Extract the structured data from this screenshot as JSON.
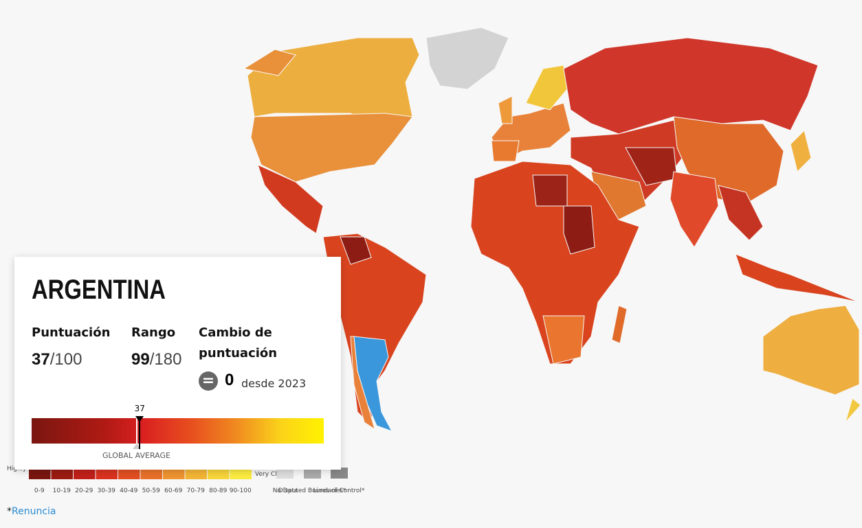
{
  "card": {
    "country": "ARGENTINA",
    "score_label": "Puntuación",
    "score": 37,
    "score_max": "/100",
    "rank_label": "Rango",
    "rank": 99,
    "rank_max": "/180",
    "change_label": "Cambio de puntuación",
    "change": 0,
    "change_since": "desde 2023",
    "average_label": "GLOBAL AVERAGE"
  },
  "legend": {
    "low_label": "Highly Corrupt",
    "high_label": "Very Clean",
    "ranges": [
      "0-9",
      "10-19",
      "20-29",
      "30-39",
      "40-49",
      "50-59",
      "60-69",
      "70-79",
      "80-89",
      "90-100"
    ],
    "colors": [
      "#7a1610",
      "#9c1b12",
      "#c1201a",
      "#d9331f",
      "#e14f22",
      "#e8712a",
      "#ee9430",
      "#f3b535",
      "#f7d43a",
      "#fbeb40"
    ],
    "no_data": "No Data",
    "disputed": "Disputed Boundaries*",
    "lines_of_control": "Lines of Control*"
  },
  "footnote": {
    "mark": "*",
    "link": "Renuncia"
  }
}
